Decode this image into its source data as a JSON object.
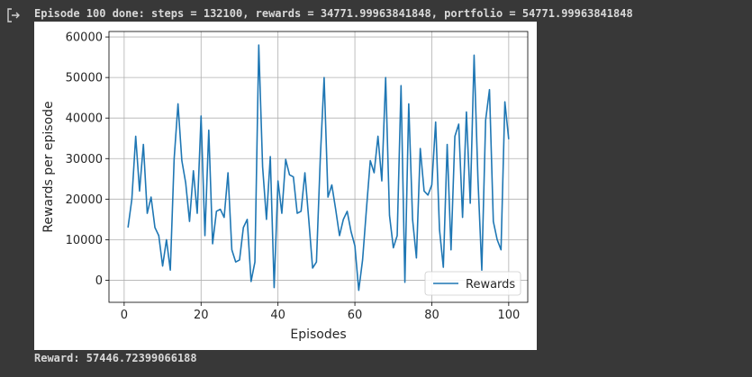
{
  "output": {
    "line1": "Episode 100 done: steps = 132100, rewards = 34771.99963841848, portfolio = 54771.99963841848",
    "line2": "Reward: 57446.72399066188"
  },
  "icons": {
    "output_toggle": "output-arrow-icon"
  },
  "colors": {
    "background": "#383838",
    "text": "#d9d9d9",
    "series": "#1f77b4",
    "grid": "#b0b0b0"
  },
  "chart_data": {
    "type": "line",
    "title": "",
    "xlabel": "Episodes",
    "ylabel": "Rewards per episode",
    "xlim": [
      -3.95,
      104.95
    ],
    "ylim": [
      -5450,
      61350
    ],
    "xticks": [
      0,
      20,
      40,
      60,
      80,
      100
    ],
    "yticks": [
      0,
      10000,
      20000,
      30000,
      40000,
      50000,
      60000
    ],
    "grid": true,
    "legend": "lower-right",
    "series": [
      {
        "name": "Rewards",
        "x": [
          1,
          2,
          3,
          4,
          5,
          6,
          7,
          8,
          9,
          10,
          11,
          12,
          13,
          14,
          15,
          16,
          17,
          18,
          19,
          20,
          21,
          22,
          23,
          24,
          25,
          26,
          27,
          28,
          29,
          30,
          31,
          32,
          33,
          34,
          35,
          36,
          37,
          38,
          39,
          40,
          41,
          42,
          43,
          44,
          45,
          46,
          47,
          48,
          49,
          50,
          51,
          52,
          53,
          54,
          55,
          56,
          57,
          58,
          59,
          60,
          61,
          62,
          63,
          64,
          65,
          66,
          67,
          68,
          69,
          70,
          71,
          72,
          73,
          74,
          75,
          76,
          77,
          78,
          79,
          80,
          81,
          82,
          83,
          84,
          85,
          86,
          87,
          88,
          89,
          90,
          91,
          92,
          93,
          94,
          95,
          96,
          97,
          98,
          99,
          100
        ],
        "values": [
          13000,
          20000,
          35500,
          22000,
          33500,
          16500,
          20500,
          13000,
          11000,
          3500,
          10000,
          2500,
          30000,
          43500,
          29500,
          24000,
          14500,
          27000,
          16500,
          40500,
          11000,
          37000,
          9000,
          17000,
          17500,
          15500,
          26500,
          7500,
          4500,
          5000,
          13000,
          15000,
          -300,
          4500,
          58000,
          28000,
          15000,
          30500,
          -1800,
          24500,
          16500,
          29800,
          26000,
          25500,
          16500,
          17000,
          26500,
          15000,
          3000,
          4500,
          30000,
          50000,
          20500,
          23500,
          17500,
          11000,
          15000,
          17000,
          12000,
          8500,
          -2500,
          5000,
          17500,
          29500,
          26500,
          35500,
          24500,
          50000,
          16000,
          8000,
          11000,
          48000,
          -500,
          43500,
          15000,
          5500,
          32500,
          22000,
          21000,
          23500,
          39000,
          12500,
          3200,
          33500,
          7500,
          35500,
          38500,
          15500,
          41500,
          19000,
          55500,
          25000,
          2500,
          39500,
          47000,
          14500,
          10000,
          7500,
          44000,
          34771
        ]
      }
    ]
  }
}
